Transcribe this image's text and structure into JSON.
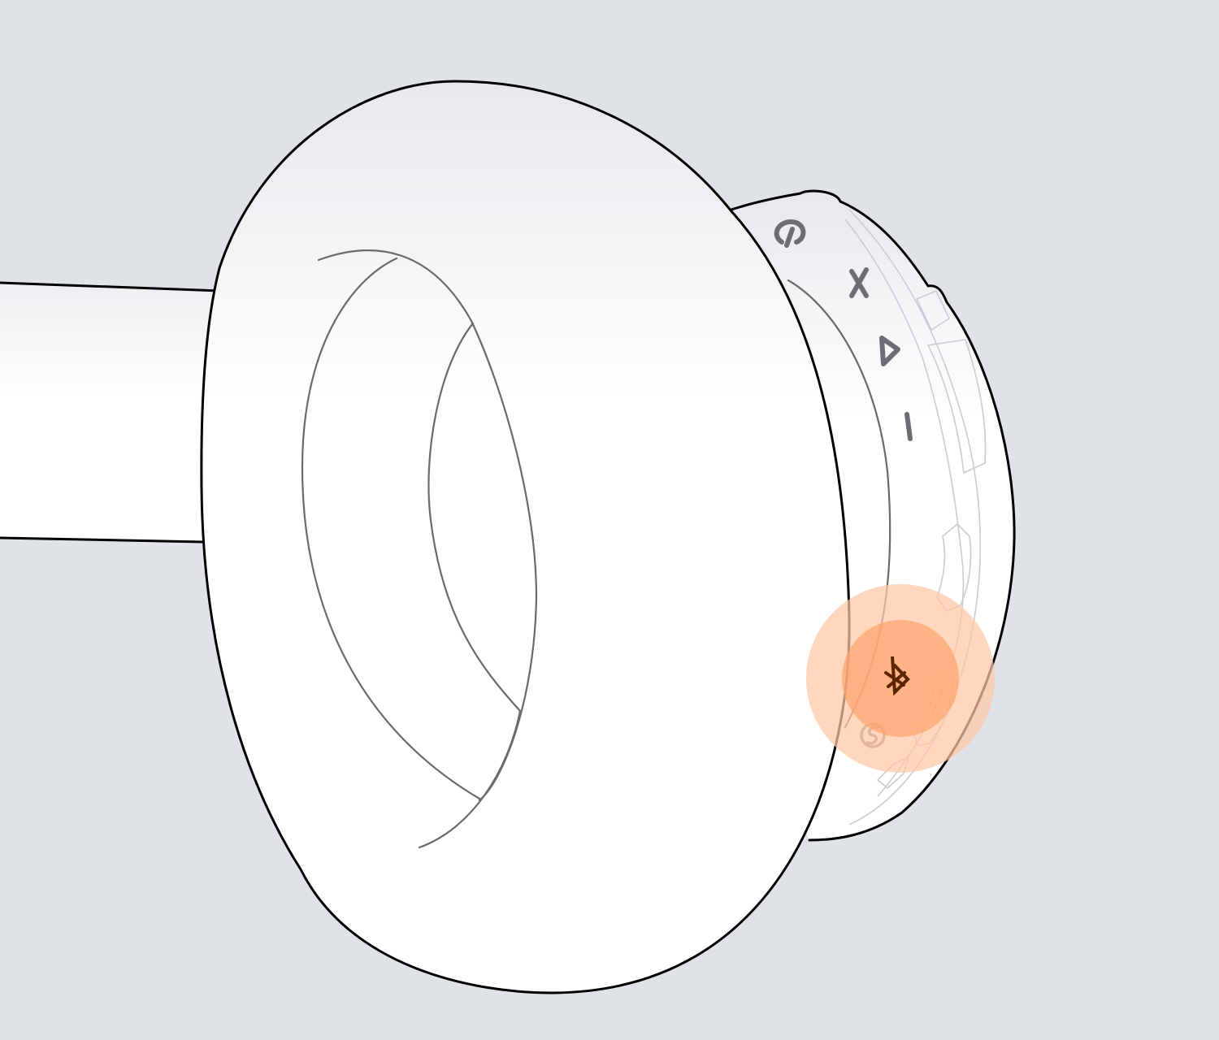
{
  "figure": {
    "subject": "headphone-ear-cup-buttons",
    "highlighted_control": "bluetooth-button"
  },
  "colors": {
    "background": "#dfe2e7",
    "surface": "#ffffff",
    "outline": "#000000",
    "inner_line": "#6a6a6a",
    "icon_grey": "#6d6e71",
    "highlight_outer": "#ffc8a6",
    "highlight_inner": "#ffa46c",
    "bluetooth_glyph": "#5a2500"
  },
  "icons": {
    "power": "power-icon",
    "multifunction": "x-icon",
    "volume_up": "triangle-icon",
    "volume_down": "minus-icon",
    "bluetooth": "bluetooth-icon",
    "secondary": "s-circle-icon"
  }
}
